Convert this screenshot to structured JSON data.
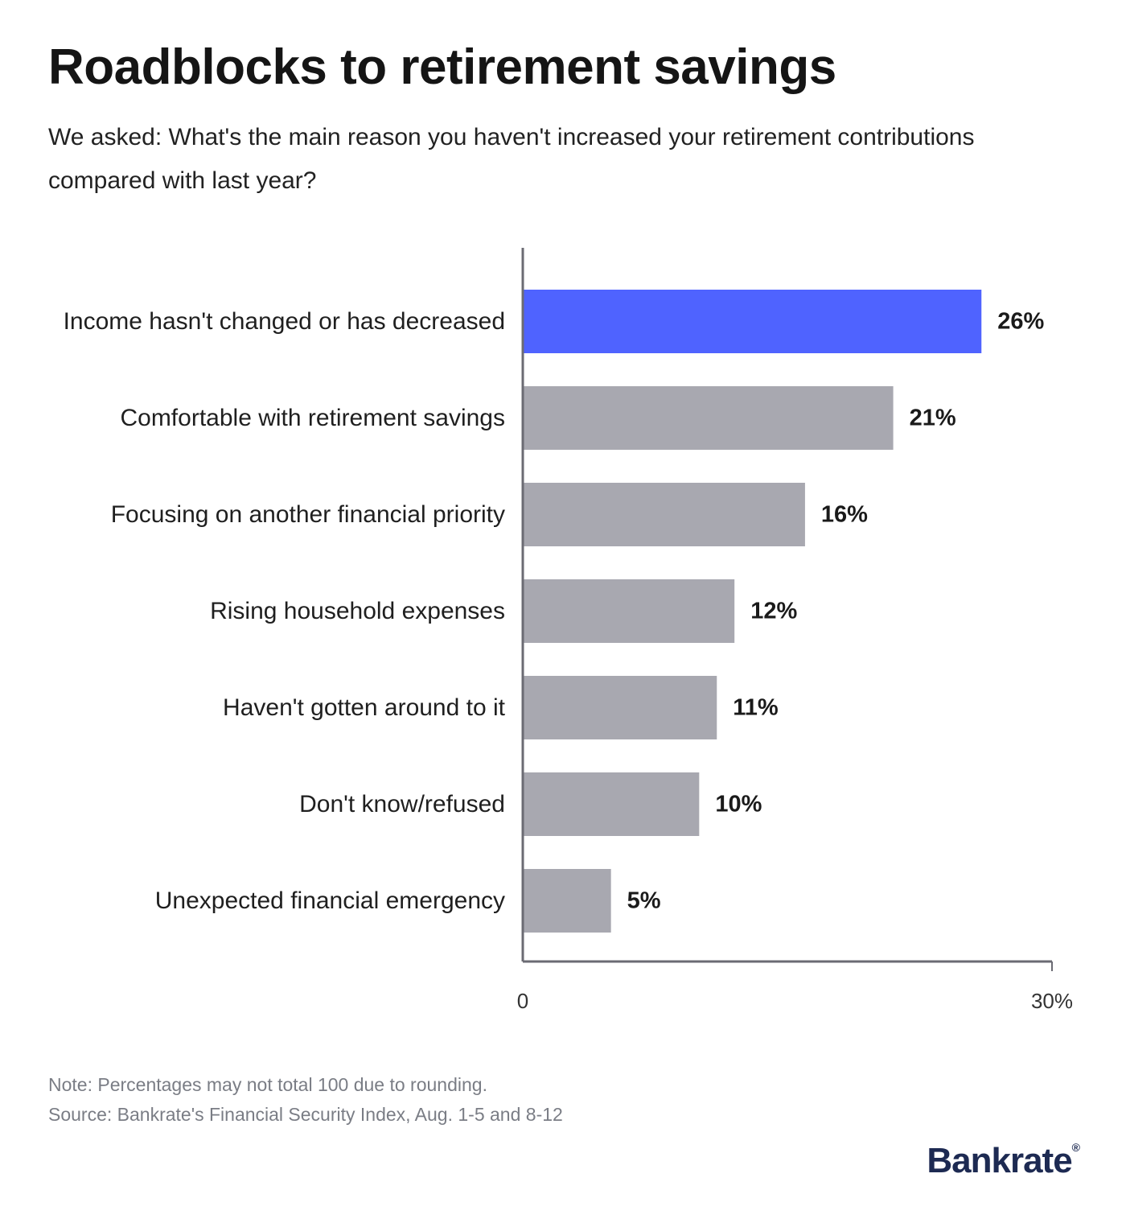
{
  "header": {
    "title": "Roadblocks to retirement savings",
    "subtitle": "We asked: What's the main reason you haven't increased your retirement contributions compared with last year?"
  },
  "chart_data": {
    "type": "bar",
    "orientation": "horizontal",
    "categories": [
      "Income hasn't changed or has decreased",
      "Comfortable with retirement savings",
      "Focusing on another financial priority",
      "Rising household expenses",
      "Haven't gotten around to it",
      "Don't know/refused",
      "Unexpected financial emergency"
    ],
    "values": [
      26,
      21,
      16,
      12,
      11,
      10,
      5
    ],
    "value_labels": [
      "26%",
      "21%",
      "16%",
      "12%",
      "11%",
      "10%",
      "5%"
    ],
    "xlim": [
      0,
      30
    ],
    "tick_labels": [
      "0",
      "30%"
    ],
    "highlight_index": 0,
    "grid": false,
    "legend": "none"
  },
  "colors": {
    "highlight": "#4f63ff",
    "bar": "#a8a8b0",
    "axis": "#6b6b73"
  },
  "footer": {
    "note": "Note: Percentages may not total 100 due to rounding.",
    "source": "Source: Bankrate's Financial Security Index, Aug. 1-5 and 8-12"
  },
  "brand": {
    "logo_text": "Bankrate",
    "logo_mark": "®"
  }
}
